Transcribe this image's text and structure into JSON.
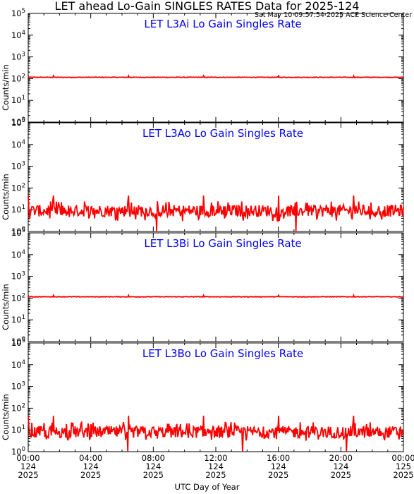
{
  "title": "LET ahead Lo-Gain SINGLES RATES Data for 2025-124",
  "timestamp": "Sat May 10 09:57:54 2025 ACE Science Center",
  "x_axis_title": "UTC Day of Year",
  "colors": {
    "trace": "#ff0000",
    "panel_title": "#0000ff",
    "axes": "#000000"
  },
  "chart_data": [
    {
      "type": "line",
      "title": "LET L3Ai Lo Gain Singles Rate",
      "ylabel": "Counts/min",
      "yscale": "log",
      "ylim": [
        1,
        100000
      ],
      "ytick_labels": [
        "10^0",
        "10^1",
        "10^2",
        "10^3",
        "10^4",
        "10^5"
      ],
      "xlim_hours": [
        0,
        24
      ],
      "series": [
        {
          "baseline": 115,
          "spike_peak": 135,
          "spike_interval_hours": 1.6
        }
      ]
    },
    {
      "type": "line",
      "title": "LET L3Ao Lo Gain Singles Rate",
      "ylabel": "Counts/min",
      "yscale": "log",
      "ylim": [
        1,
        100000
      ],
      "ytick_labels": [
        "10^0",
        "10^1",
        "10^2",
        "10^3",
        "10^4",
        "10^5"
      ],
      "xlim_hours": [
        0,
        24
      ],
      "series": [
        {
          "baseline": 9,
          "noise_range": [
            3,
            20
          ],
          "spike_peak": 45,
          "spike_interval_hours": 1.6
        }
      ]
    },
    {
      "type": "line",
      "title": "LET L3Bi Lo Gain Singles Rate",
      "ylabel": "Counts/min",
      "yscale": "log",
      "ylim": [
        1,
        100000
      ],
      "ytick_labels": [
        "10^0",
        "10^1",
        "10^2",
        "10^3",
        "10^4",
        "10^5"
      ],
      "xlim_hours": [
        0,
        24
      ],
      "series": [
        {
          "baseline": 115,
          "spike_peak": 135,
          "spike_interval_hours": 1.6
        }
      ]
    },
    {
      "type": "line",
      "title": "LET L3Bo Lo Gain Singles Rate",
      "ylabel": "Counts/min",
      "yscale": "log",
      "ylim": [
        1,
        100000
      ],
      "ytick_labels": [
        "10^0",
        "10^1",
        "10^2",
        "10^3",
        "10^4",
        "10^5"
      ],
      "xlim_hours": [
        0,
        24
      ],
      "series": [
        {
          "baseline": 8,
          "noise_range": [
            3,
            18
          ],
          "spike_peak": 45,
          "spike_interval_hours": 1.6
        }
      ]
    }
  ],
  "x_ticks": [
    {
      "time": "00:00",
      "doy": "124",
      "year": "2025"
    },
    {
      "time": "04:00",
      "doy": "124",
      "year": "2025"
    },
    {
      "time": "08:00",
      "doy": "124",
      "year": "2025"
    },
    {
      "time": "12:00",
      "doy": "124",
      "year": "2025"
    },
    {
      "time": "16:00",
      "doy": "124",
      "year": "2025"
    },
    {
      "time": "20:00",
      "doy": "124",
      "year": "2025"
    },
    {
      "time": "00:00",
      "doy": "125",
      "year": "2025"
    }
  ]
}
